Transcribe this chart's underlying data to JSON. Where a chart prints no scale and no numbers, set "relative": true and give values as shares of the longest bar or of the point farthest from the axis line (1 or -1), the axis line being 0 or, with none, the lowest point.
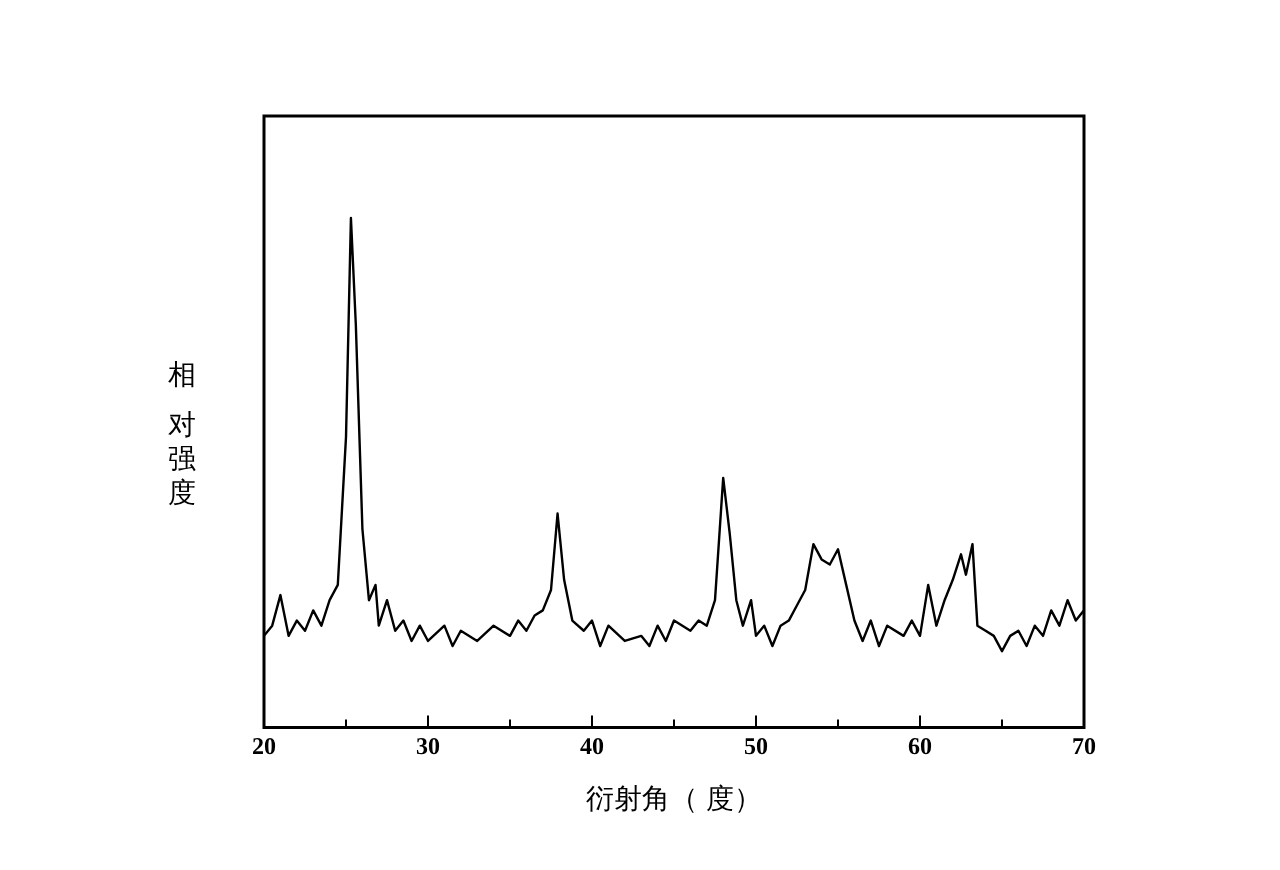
{
  "chart_data": {
    "type": "line",
    "relative": true,
    "xlabel": "衍射角（ 度）",
    "ylabel": "相对强度",
    "xlim": [
      20,
      70
    ],
    "xticks": [
      20,
      {
        "value": 25,
        "label": null
      },
      30,
      {
        "value": 35,
        "label": null
      },
      40,
      {
        "value": 45,
        "label": null
      },
      50,
      {
        "value": 55,
        "label": null
      },
      60,
      {
        "value": 65,
        "label": null
      },
      70
    ],
    "grid": false,
    "legend": false,
    "marker": "none",
    "line_style": "solid",
    "series": [
      {
        "color": "#000000",
        "x": [
          20,
          20.5,
          21,
          21.5,
          22,
          22.5,
          23,
          23.5,
          24,
          24.5,
          25,
          25.3,
          25.6,
          26,
          26.4,
          26.8,
          27,
          27.5,
          28,
          28.5,
          29,
          29.5,
          30,
          31,
          31.5,
          32,
          33,
          34,
          35,
          35.5,
          36,
          36.5,
          37,
          37.5,
          37.9,
          38.3,
          38.8,
          39.5,
          40,
          40.5,
          41,
          42,
          43,
          43.5,
          44,
          44.5,
          45,
          46,
          46.5,
          47,
          47.5,
          48,
          48.4,
          48.8,
          49.2,
          49.7,
          50,
          50.5,
          51,
          51.5,
          52,
          52.5,
          53,
          53.5,
          54,
          54.5,
          55,
          55.5,
          56,
          56.5,
          57,
          57.5,
          58,
          59,
          59.5,
          60,
          60.5,
          61,
          61.5,
          62,
          62.5,
          62.8,
          63.2,
          63.5,
          64,
          64.5,
          65,
          65.5,
          66,
          66.5,
          67,
          67.5,
          68,
          68.5,
          69,
          69.5,
          70
        ],
        "values": [
          0.18,
          0.2,
          0.26,
          0.18,
          0.21,
          0.19,
          0.23,
          0.2,
          0.25,
          0.28,
          0.57,
          1,
          0.79,
          0.39,
          0.25,
          0.28,
          0.2,
          0.25,
          0.19,
          0.21,
          0.17,
          0.2,
          0.17,
          0.2,
          0.16,
          0.19,
          0.17,
          0.2,
          0.18,
          0.21,
          0.19,
          0.22,
          0.23,
          0.27,
          0.42,
          0.29,
          0.21,
          0.19,
          0.21,
          0.16,
          0.2,
          0.17,
          0.18,
          0.16,
          0.2,
          0.17,
          0.21,
          0.19,
          0.21,
          0.2,
          0.25,
          0.49,
          0.38,
          0.25,
          0.2,
          0.25,
          0.18,
          0.2,
          0.16,
          0.2,
          0.21,
          0.24,
          0.27,
          0.36,
          0.33,
          0.32,
          0.35,
          0.28,
          0.21,
          0.17,
          0.21,
          0.16,
          0.2,
          0.18,
          0.21,
          0.18,
          0.28,
          0.2,
          0.25,
          0.29,
          0.34,
          0.3,
          0.36,
          0.2,
          0.19,
          0.18,
          0.15,
          0.18,
          0.19,
          0.16,
          0.2,
          0.18,
          0.23,
          0.2,
          0.25,
          0.21,
          0.23
        ]
      }
    ]
  }
}
